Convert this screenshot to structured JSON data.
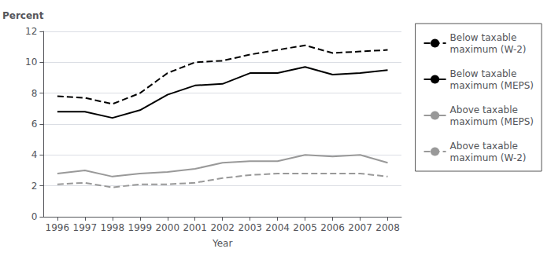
{
  "chart_data": {
    "type": "line",
    "xlabel": "Year",
    "ylabel": "Percent",
    "x": [
      1996,
      1997,
      1998,
      1999,
      2000,
      2001,
      2002,
      2003,
      2004,
      2005,
      2006,
      2007,
      2008
    ],
    "xlim": [
      1995.5,
      2008.5
    ],
    "xticks": [
      1996,
      1997,
      1998,
      1999,
      2000,
      2001,
      2002,
      2003,
      2004,
      2005,
      2006,
      2007,
      2008
    ],
    "ylim": [
      0,
      12
    ],
    "yticks": [
      0,
      2,
      4,
      6,
      8,
      10,
      12
    ],
    "grid": true,
    "legend": "right",
    "series": [
      {
        "name": "Below taxable\nmaximum (W-2)",
        "color": "#000000",
        "line_style": "dashed",
        "values": [
          7.8,
          7.7,
          7.3,
          8.0,
          9.3,
          10.0,
          10.1,
          10.5,
          10.8,
          11.1,
          10.6,
          10.7,
          10.8
        ]
      },
      {
        "name": "Below taxable\nmaximum (MEPS)",
        "color": "#000000",
        "line_style": "solid",
        "values": [
          6.8,
          6.8,
          6.4,
          6.9,
          7.9,
          8.5,
          8.6,
          9.3,
          9.3,
          9.7,
          9.2,
          9.3,
          9.5
        ]
      },
      {
        "name": "Above taxable\nmaximum (MEPS)",
        "color": "#999999",
        "line_style": "solid",
        "values": [
          2.8,
          3.0,
          2.6,
          2.8,
          2.9,
          3.1,
          3.5,
          3.6,
          3.6,
          4.0,
          3.9,
          4.0,
          3.5
        ]
      },
      {
        "name": "Above taxable\nmaximum (W-2)",
        "color": "#999999",
        "line_style": "dashed",
        "values": [
          2.1,
          2.2,
          1.9,
          2.1,
          2.1,
          2.2,
          2.5,
          2.7,
          2.8,
          2.8,
          2.8,
          2.8,
          2.6
        ]
      }
    ]
  }
}
